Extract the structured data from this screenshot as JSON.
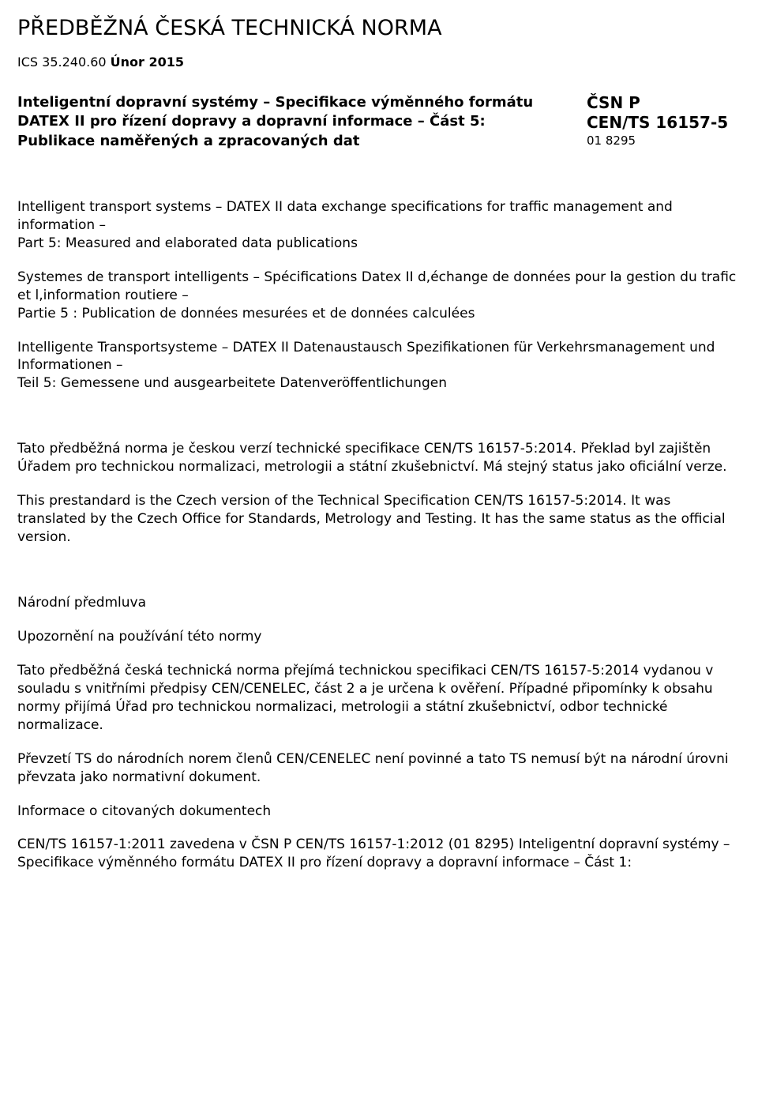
{
  "doc_title": "PŘEDBĚŽNÁ ČESKÁ TECHNICKÁ NORMA",
  "ics": {
    "prefix": "ICS 35.240.60 ",
    "bold": "Únor 2015"
  },
  "header": {
    "left_bold": "Inteligentní dopravní systémy – Specifikace výměnného formátu DATEX II pro řízení dopravy a dopravní informace – Část 5: Publikace naměřených a zpracovaných dat",
    "right_code_line1": "ČSN P",
    "right_code_line2_a": "CEN/TS 16157",
    "right_code_line2_dash": "-",
    "right_code_line2_b": "5",
    "right_small": "01 8295"
  },
  "translations": {
    "en": "Intelligent transport systems – DATEX II data exchange specifications for traffic management and information –\nPart 5: Measured and elaborated data publications",
    "fr": "Systemes de transport intelligents – Spécifications Datex II d,échange de données pour la gestion du trafic et l,information routiere –\nPartie 5 : Publication de données mesurées et de données calculées",
    "de": "Intelligente Transportsysteme – DATEX II Datenaustausch Spezifikationen für Verkehrsmanagement und Informationen –\nTeil 5: Gemessene und ausgearbeitete Datenveröffentlichungen"
  },
  "intro_cz": "Tato předběžná norma je českou verzí technické specifikace CEN/TS 16157-5:2014. Překlad byl zajištěn Úřadem pro technickou normalizaci, metrologii a státní zkušebnictví. Má stejný status jako oficiální verze.",
  "intro_en": "This prestandard is the Czech version of the Technical Specification CEN/TS 16157-5:2014. It was translated by the Czech Office for Standards, Metrology and Testing. It has the same status as the official version.",
  "preface_heading": "Národní předmluva",
  "warning_heading": "Upozornění na používání této normy",
  "warning_p1": "Tato předběžná česká technická norma přejímá technickou specifikaci CEN/TS 16157-5:2014 vydanou v souladu s vnitřními předpisy CEN/CENELEC, část 2 a je určena k ověření. Případné připomínky k obsahu normy přijímá Úřad pro technickou normalizaci, metrologii a státní zkušebnictví, odbor technické normalizace.",
  "warning_p2": "Převzetí TS do národních norem členů CEN/CENELEC není povinné a tato TS nemusí být na národní úrovni převzata jako normativní dokument.",
  "refs_heading": "Informace o citovaných dokumentech",
  "refs_p1": "CEN/TS 16157-1:2011 zavedena v ČSN P CEN/TS 16157-1:2012 (01 8295) Inteligentní dopravní systémy – Specifikace výměnného formátu DATEX II pro řízení dopravy a dopravní informace – Část 1:"
}
